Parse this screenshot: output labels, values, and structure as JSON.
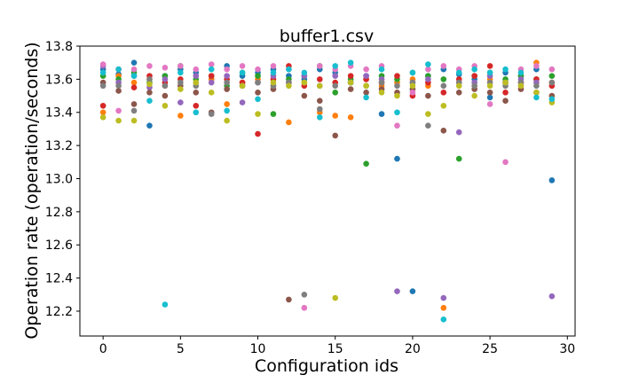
{
  "chart_data": {
    "type": "scatter",
    "title": "buffer1.csv",
    "xlabel": "Configuration ids",
    "ylabel": "Operation rate (operation/seconds)",
    "xlim": [
      -1.5,
      30.5
    ],
    "ylim": [
      12.05,
      13.8
    ],
    "xticks": [
      0,
      5,
      10,
      15,
      20,
      25,
      30
    ],
    "yticks": [
      12.2,
      12.4,
      12.6,
      12.8,
      13.0,
      13.2,
      13.4,
      13.6,
      13.8
    ],
    "ytick_labels": [
      "12.2",
      "12.4",
      "12.6",
      "12.8",
      "13.0",
      "13.2",
      "13.4",
      "13.6",
      "13.8"
    ],
    "grid": false,
    "legend": false,
    "colors": [
      "#1f77b4",
      "#ff7f0e",
      "#2ca02c",
      "#d62728",
      "#9467bd",
      "#8c564b",
      "#e377c2",
      "#7f7f7f",
      "#bcbd22",
      "#17becf"
    ],
    "series": [
      {
        "color": "#1f77b4",
        "points": [
          [
            0,
            13.66
          ],
          [
            1,
            13.63
          ],
          [
            2,
            13.7
          ],
          [
            3,
            13.32
          ],
          [
            4,
            13.62
          ],
          [
            5,
            13.66
          ],
          [
            6,
            13.64
          ],
          [
            7,
            13.6
          ],
          [
            8,
            13.68
          ],
          [
            9,
            13.62
          ],
          [
            10,
            13.64
          ],
          [
            11,
            13.66
          ],
          [
            12,
            13.62
          ],
          [
            13,
            13.6
          ],
          [
            14,
            13.66
          ],
          [
            15,
            13.64
          ],
          [
            16,
            13.58
          ],
          [
            17,
            13.62
          ],
          [
            18,
            13.39
          ],
          [
            19,
            13.12
          ],
          [
            20,
            12.32
          ],
          [
            21,
            13.62
          ],
          [
            22,
            13.66
          ],
          [
            23,
            13.63
          ],
          [
            24,
            13.6
          ],
          [
            25,
            13.49
          ],
          [
            26,
            13.64
          ],
          [
            27,
            13.62
          ],
          [
            28,
            13.66
          ],
          [
            29,
            12.99
          ]
        ]
      },
      {
        "color": "#ff7f0e",
        "points": [
          [
            0,
            13.4
          ],
          [
            1,
            13.62
          ],
          [
            2,
            13.58
          ],
          [
            3,
            13.6
          ],
          [
            4,
            13.56
          ],
          [
            5,
            13.38
          ],
          [
            6,
            13.58
          ],
          [
            7,
            13.6
          ],
          [
            8,
            13.45
          ],
          [
            9,
            13.58
          ],
          [
            10,
            13.6
          ],
          [
            11,
            13.56
          ],
          [
            12,
            13.34
          ],
          [
            13,
            13.58
          ],
          [
            14,
            13.4
          ],
          [
            15,
            13.38
          ],
          [
            16,
            13.37
          ],
          [
            17,
            13.6
          ],
          [
            18,
            13.56
          ],
          [
            19,
            13.58
          ],
          [
            20,
            13.6
          ],
          [
            21,
            13.56
          ],
          [
            22,
            12.22
          ],
          [
            23,
            13.58
          ],
          [
            24,
            13.56
          ],
          [
            25,
            13.6
          ],
          [
            26,
            13.58
          ],
          [
            27,
            13.56
          ],
          [
            28,
            13.7
          ],
          [
            29,
            13.58
          ]
        ]
      },
      {
        "color": "#2ca02c",
        "points": [
          [
            0,
            13.62
          ],
          [
            1,
            13.6
          ],
          [
            2,
            13.64
          ],
          [
            3,
            13.58
          ],
          [
            4,
            13.62
          ],
          [
            5,
            13.68
          ],
          [
            6,
            13.6
          ],
          [
            7,
            13.62
          ],
          [
            8,
            13.56
          ],
          [
            9,
            13.64
          ],
          [
            10,
            13.62
          ],
          [
            11,
            13.39
          ],
          [
            12,
            13.6
          ],
          [
            13,
            13.62
          ],
          [
            14,
            13.68
          ],
          [
            15,
            13.52
          ],
          [
            16,
            13.6
          ],
          [
            17,
            13.09
          ],
          [
            18,
            13.62
          ],
          [
            19,
            13.6
          ],
          [
            20,
            13.64
          ],
          [
            21,
            13.62
          ],
          [
            22,
            13.6
          ],
          [
            23,
            13.12
          ],
          [
            24,
            13.62
          ],
          [
            25,
            13.64
          ],
          [
            26,
            13.6
          ],
          [
            27,
            13.62
          ],
          [
            28,
            13.6
          ],
          [
            29,
            13.62
          ]
        ]
      },
      {
        "color": "#d62728",
        "points": [
          [
            0,
            13.44
          ],
          [
            1,
            13.66
          ],
          [
            2,
            13.55
          ],
          [
            3,
            13.62
          ],
          [
            4,
            13.58
          ],
          [
            5,
            13.6
          ],
          [
            6,
            13.44
          ],
          [
            7,
            13.62
          ],
          [
            8,
            13.6
          ],
          [
            9,
            13.58
          ],
          [
            10,
            13.27
          ],
          [
            11,
            13.6
          ],
          [
            12,
            13.68
          ],
          [
            13,
            13.56
          ],
          [
            14,
            13.6
          ],
          [
            15,
            13.58
          ],
          [
            16,
            13.62
          ],
          [
            17,
            13.6
          ],
          [
            18,
            13.58
          ],
          [
            19,
            13.62
          ],
          [
            20,
            13.5
          ],
          [
            21,
            13.58
          ],
          [
            22,
            13.52
          ],
          [
            23,
            13.6
          ],
          [
            24,
            13.62
          ],
          [
            25,
            13.68
          ],
          [
            26,
            13.52
          ],
          [
            27,
            13.58
          ],
          [
            28,
            13.6
          ],
          [
            29,
            13.56
          ]
        ]
      },
      {
        "color": "#9467bd",
        "points": [
          [
            0,
            13.68
          ],
          [
            1,
            13.58
          ],
          [
            2,
            13.62
          ],
          [
            3,
            13.55
          ],
          [
            4,
            13.6
          ],
          [
            5,
            13.46
          ],
          [
            6,
            13.62
          ],
          [
            7,
            13.58
          ],
          [
            8,
            13.62
          ],
          [
            9,
            13.46
          ],
          [
            10,
            13.58
          ],
          [
            11,
            13.62
          ],
          [
            12,
            13.58
          ],
          [
            13,
            13.62
          ],
          [
            14,
            13.56
          ],
          [
            15,
            13.62
          ],
          [
            16,
            13.58
          ],
          [
            17,
            13.62
          ],
          [
            18,
            13.6
          ],
          [
            19,
            12.32
          ],
          [
            20,
            13.58
          ],
          [
            21,
            13.6
          ],
          [
            22,
            12.28
          ],
          [
            23,
            13.28
          ],
          [
            24,
            13.58
          ],
          [
            25,
            13.62
          ],
          [
            26,
            13.58
          ],
          [
            27,
            13.6
          ],
          [
            28,
            13.58
          ],
          [
            29,
            12.29
          ]
        ]
      },
      {
        "color": "#8c564b",
        "points": [
          [
            0,
            13.58
          ],
          [
            1,
            13.53
          ],
          [
            2,
            13.45
          ],
          [
            3,
            13.52
          ],
          [
            4,
            13.5
          ],
          [
            5,
            13.56
          ],
          [
            6,
            13.52
          ],
          [
            7,
            13.4
          ],
          [
            8,
            13.54
          ],
          [
            9,
            13.56
          ],
          [
            10,
            13.52
          ],
          [
            11,
            13.54
          ],
          [
            12,
            12.27
          ],
          [
            13,
            13.5
          ],
          [
            14,
            13.47
          ],
          [
            15,
            13.26
          ],
          [
            16,
            13.54
          ],
          [
            17,
            13.52
          ],
          [
            18,
            13.54
          ],
          [
            19,
            13.52
          ],
          [
            20,
            13.54
          ],
          [
            21,
            13.5
          ],
          [
            22,
            13.29
          ],
          [
            23,
            13.52
          ],
          [
            24,
            13.54
          ],
          [
            25,
            13.52
          ],
          [
            26,
            13.47
          ],
          [
            27,
            13.54
          ],
          [
            28,
            13.52
          ],
          [
            29,
            13.5
          ]
        ]
      },
      {
        "color": "#e377c2",
        "points": [
          [
            0,
            13.69
          ],
          [
            1,
            13.41
          ],
          [
            2,
            13.66
          ],
          [
            3,
            13.68
          ],
          [
            4,
            13.67
          ],
          [
            5,
            13.68
          ],
          [
            6,
            13.66
          ],
          [
            7,
            13.69
          ],
          [
            8,
            13.66
          ],
          [
            9,
            13.68
          ],
          [
            10,
            13.66
          ],
          [
            11,
            13.68
          ],
          [
            12,
            13.66
          ],
          [
            13,
            12.22
          ],
          [
            14,
            13.68
          ],
          [
            15,
            13.66
          ],
          [
            16,
            13.68
          ],
          [
            17,
            13.66
          ],
          [
            18,
            13.68
          ],
          [
            19,
            13.32
          ],
          [
            20,
            13.52
          ],
          [
            21,
            13.66
          ],
          [
            22,
            13.68
          ],
          [
            23,
            13.66
          ],
          [
            24,
            13.68
          ],
          [
            25,
            13.45
          ],
          [
            26,
            13.1
          ],
          [
            27,
            13.66
          ],
          [
            28,
            13.68
          ],
          [
            29,
            13.66
          ]
        ]
      },
      {
        "color": "#7f7f7f",
        "points": [
          [
            0,
            13.56
          ],
          [
            1,
            13.56
          ],
          [
            2,
            13.41
          ],
          [
            3,
            13.6
          ],
          [
            4,
            13.56
          ],
          [
            5,
            13.58
          ],
          [
            6,
            13.56
          ],
          [
            7,
            13.39
          ],
          [
            8,
            13.58
          ],
          [
            9,
            13.56
          ],
          [
            10,
            13.58
          ],
          [
            11,
            13.56
          ],
          [
            12,
            13.58
          ],
          [
            13,
            12.3
          ],
          [
            14,
            13.42
          ],
          [
            15,
            13.56
          ],
          [
            16,
            13.58
          ],
          [
            17,
            13.56
          ],
          [
            18,
            13.58
          ],
          [
            19,
            13.56
          ],
          [
            20,
            13.58
          ],
          [
            21,
            13.32
          ],
          [
            22,
            13.56
          ],
          [
            23,
            13.58
          ],
          [
            24,
            13.56
          ],
          [
            25,
            13.58
          ],
          [
            26,
            13.56
          ],
          [
            27,
            13.58
          ],
          [
            28,
            13.56
          ],
          [
            29,
            13.58
          ]
        ]
      },
      {
        "color": "#bcbd22",
        "points": [
          [
            0,
            13.37
          ],
          [
            1,
            13.35
          ],
          [
            2,
            13.35
          ],
          [
            3,
            13.57
          ],
          [
            4,
            13.44
          ],
          [
            5,
            13.54
          ],
          [
            6,
            13.58
          ],
          [
            7,
            13.52
          ],
          [
            8,
            13.35
          ],
          [
            9,
            13.56
          ],
          [
            10,
            13.39
          ],
          [
            11,
            13.58
          ],
          [
            12,
            13.56
          ],
          [
            13,
            13.58
          ],
          [
            14,
            13.56
          ],
          [
            15,
            12.28
          ],
          [
            16,
            13.58
          ],
          [
            17,
            13.56
          ],
          [
            18,
            13.52
          ],
          [
            19,
            13.5
          ],
          [
            20,
            13.56
          ],
          [
            21,
            13.39
          ],
          [
            22,
            13.44
          ],
          [
            23,
            13.56
          ],
          [
            24,
            13.5
          ],
          [
            25,
            13.56
          ],
          [
            26,
            13.58
          ],
          [
            27,
            13.56
          ],
          [
            28,
            13.52
          ],
          [
            29,
            13.46
          ]
        ]
      },
      {
        "color": "#17becf",
        "points": [
          [
            0,
            13.64
          ],
          [
            1,
            13.66
          ],
          [
            2,
            13.62
          ],
          [
            3,
            13.47
          ],
          [
            4,
            12.24
          ],
          [
            5,
            13.64
          ],
          [
            6,
            13.4
          ],
          [
            7,
            13.66
          ],
          [
            8,
            13.41
          ],
          [
            9,
            13.64
          ],
          [
            10,
            13.48
          ],
          [
            11,
            13.64
          ],
          [
            12,
            13.66
          ],
          [
            13,
            13.64
          ],
          [
            14,
            13.37
          ],
          [
            15,
            13.68
          ],
          [
            16,
            13.7
          ],
          [
            17,
            13.49
          ],
          [
            18,
            13.66
          ],
          [
            19,
            13.4
          ],
          [
            20,
            13.64
          ],
          [
            21,
            13.69
          ],
          [
            22,
            12.15
          ],
          [
            23,
            13.64
          ],
          [
            24,
            13.66
          ],
          [
            25,
            13.64
          ],
          [
            26,
            13.66
          ],
          [
            27,
            13.64
          ],
          [
            28,
            13.49
          ],
          [
            29,
            13.48
          ]
        ]
      }
    ]
  }
}
